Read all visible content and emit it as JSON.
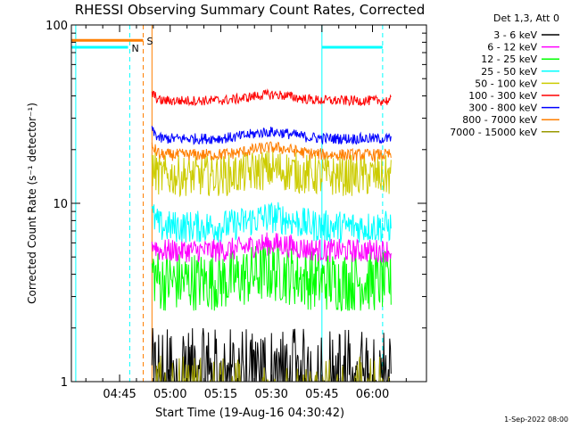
{
  "chart_data": {
    "type": "line",
    "title": "RHESSI Observing Summary Count Rates, Corrected",
    "xlabel": "Start Time (19-Aug-16 04:30:42)",
    "ylabel": "Corrected Count Rate (s⁻¹ detector⁻¹)",
    "x_ticks": [
      "04:45",
      "05:00",
      "05:15",
      "05:30",
      "05:45",
      "06:00"
    ],
    "x_tick_minutes": [
      45,
      60,
      75,
      90,
      105,
      120
    ],
    "xlim_minutes": [
      30.7,
      136.0
    ],
    "y_ticks": [
      "1",
      "10",
      "100"
    ],
    "y_tick_values": [
      1,
      10,
      100
    ],
    "ylim": [
      1,
      100
    ],
    "y_scale": "log",
    "legend_title": "Det 1,3, Att 0",
    "legend_position": "outside-right",
    "footer": "1-Sep-2022 08:00",
    "data_start_minute": 54.6,
    "data_end_minute": 125.5,
    "series": [
      {
        "name": "3 - 6 keV",
        "color": "#000000",
        "low": 1.0,
        "high": 2.0,
        "style": "spiky"
      },
      {
        "name": "6 - 12 keV",
        "color": "#ff00ff",
        "low": 4.2,
        "high": 7.0,
        "style": "dense"
      },
      {
        "name": "12 - 25 keV",
        "color": "#00ff00",
        "low": 2.5,
        "high": 6.0,
        "style": "noisy"
      },
      {
        "name": "25 - 50 keV",
        "color": "#00ffff",
        "low": 5.2,
        "high": 10.5,
        "style": "dense"
      },
      {
        "name": "50 - 100 keV",
        "color": "#cccc00",
        "low": 11.0,
        "high": 20.0,
        "style": "noisy"
      },
      {
        "name": "100 - 300 keV",
        "color": "#ff0000",
        "low": 33.0,
        "high": 48.0,
        "style": "line"
      },
      {
        "name": "300 - 800 keV",
        "color": "#0000ff",
        "low": 20.0,
        "high": 30.0,
        "style": "line"
      },
      {
        "name": "800 - 7000 keV",
        "color": "#ff7f00",
        "low": 16.0,
        "high": 25.0,
        "style": "line"
      },
      {
        "name": "7000 - 15000 keV",
        "color": "#999900",
        "low": 1.0,
        "high": 1.4,
        "style": "sparse"
      }
    ],
    "status_bars": [
      {
        "label": "S",
        "color": "#ff7f00",
        "start_minute": 30.7,
        "end_minute": 52.0,
        "y_value": 82
      },
      {
        "label": "N",
        "color": "#00ffff",
        "start_minute": 30.7,
        "end_minute": 47.5,
        "y_value": 75
      },
      {
        "label": "",
        "color": "#00ffff",
        "start_minute": 105.0,
        "end_minute": 123.0,
        "y_value": 75
      }
    ],
    "vertical_markers": [
      {
        "minute": 32.0,
        "color": "#00ffff",
        "dashed": false
      },
      {
        "minute": 48.0,
        "color": "#00ffff",
        "dashed": true
      },
      {
        "minute": 52.0,
        "color": "#ff7f00",
        "dashed": true
      },
      {
        "minute": 54.6,
        "color": "#ff7f00",
        "dashed": false
      },
      {
        "minute": 105.0,
        "color": "#00ffff",
        "dashed": false
      },
      {
        "minute": 123.0,
        "color": "#00ffff",
        "dashed": true
      }
    ]
  }
}
